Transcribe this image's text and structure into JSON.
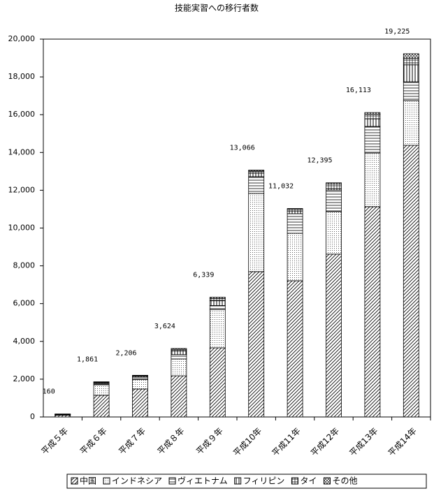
{
  "chart_data": {
    "type": "stacked-bar",
    "title": "技能実習への移行者数",
    "categories": [
      "平成５年",
      "平成６年",
      "平成７年",
      "平成８年",
      "平成９年",
      "平成10年",
      "平成11年",
      "平成12年",
      "平成13年",
      "平成14年"
    ],
    "series": [
      {
        "name": "中国",
        "color": "#000000",
        "pattern": "diagonal",
        "values": [
          90,
          1150,
          1480,
          2180,
          3660,
          7690,
          7210,
          8620,
          11130,
          14380
        ]
      },
      {
        "name": "インドネシア",
        "color": "#000000",
        "pattern": "dots",
        "values": [
          30,
          550,
          500,
          890,
          2030,
          4140,
          2510,
          2250,
          2840,
          2370
        ]
      },
      {
        "name": "ヴィエトナム",
        "color": "#000000",
        "pattern": "hlines",
        "values": [
          10,
          80,
          130,
          230,
          210,
          890,
          1040,
          1140,
          1410,
          990
        ]
      },
      {
        "name": "フィリピン",
        "color": "#000000",
        "pattern": "vlines",
        "values": [
          10,
          40,
          50,
          200,
          250,
          180,
          140,
          80,
          400,
          900
        ]
      },
      {
        "name": "タイ",
        "color": "#000000",
        "pattern": "grid",
        "values": [
          10,
          30,
          30,
          80,
          120,
          120,
          100,
          250,
          240,
          350
        ]
      },
      {
        "name": "その他",
        "color": "#000000",
        "pattern": "crosshatch",
        "values": [
          10,
          11,
          16,
          44,
          69,
          46,
          32,
          55,
          93,
          235
        ]
      }
    ],
    "totals": [
      160,
      1861,
      2206,
      3624,
      6339,
      13066,
      11032,
      12395,
      16113,
      19225
    ],
    "total_labels": [
      "160",
      "1,861",
      "2,206",
      "3,624",
      "6,339",
      "13,066",
      "11,032",
      "12,395",
      "16,113",
      "19,225"
    ],
    "ylim": [
      0,
      20000
    ],
    "yticks": [
      0,
      {
        "value": 2000,
        "label": "2,000"
      },
      {
        "value": 4000,
        "label": "4,000"
      },
      {
        "value": 6000,
        "label": "6,000"
      },
      {
        "value": 8000,
        "label": "8,000"
      },
      {
        "value": 10000,
        "label": "10,000"
      },
      {
        "value": 12000,
        "label": "12,000"
      },
      {
        "value": 14000,
        "label": "14,000"
      },
      {
        "value": 16000,
        "label": "16,000"
      },
      {
        "value": 18000,
        "label": "18,000"
      },
      {
        "value": 20000,
        "label": "20,000"
      }
    ],
    "grid": false,
    "legend": "bottom"
  }
}
